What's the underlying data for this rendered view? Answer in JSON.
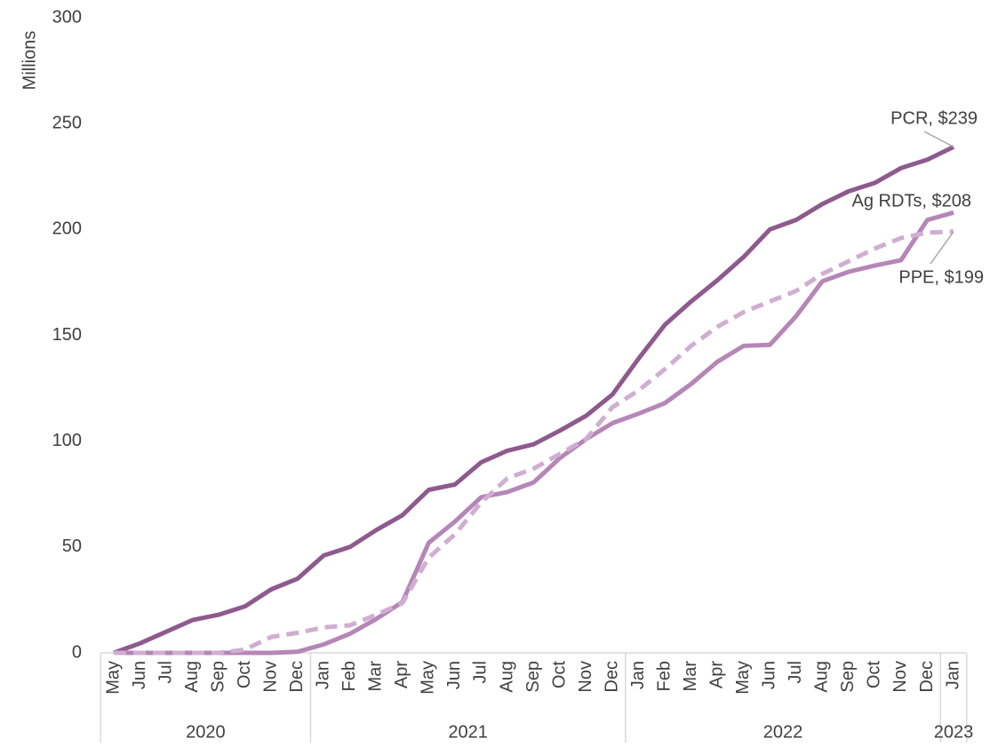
{
  "chart_data": {
    "type": "line",
    "y_label": "Millions",
    "categories": [
      "May",
      "Jun",
      "Jul",
      "Aug",
      "Sep",
      "Oct",
      "Nov",
      "Dec",
      "Jan",
      "Feb",
      "Mar",
      "Apr",
      "May",
      "Jun",
      "Jul",
      "Aug",
      "Sep",
      "Oct",
      "Nov",
      "Dec",
      "Jan",
      "Feb",
      "Mar",
      "Apr",
      "May",
      "Jun",
      "Jul",
      "Aug",
      "Sep",
      "Oct",
      "Nov",
      "Dec",
      "Jan"
    ],
    "category_groups": [
      {
        "label": "2020",
        "count": 8
      },
      {
        "label": "2021",
        "count": 12
      },
      {
        "label": "2022",
        "count": 12
      },
      {
        "label": "2023",
        "count": 1
      }
    ],
    "series": [
      {
        "name": "PCR",
        "color": "#8e5a8e",
        "dashed": false,
        "values": [
          0,
          4.5,
          10,
          15.5,
          18,
          22,
          30,
          35,
          46,
          50,
          58,
          65,
          77,
          79.5,
          90,
          95.5,
          98.5,
          105,
          112,
          122,
          139,
          155,
          166,
          176,
          187,
          200,
          204.5,
          212,
          218,
          222,
          229,
          233,
          239
        ],
        "value_labels": [
          null,
          null,
          null,
          null,
          null,
          null,
          null,
          null,
          null,
          null,
          null,
          null,
          null,
          null,
          null,
          null,
          null,
          null,
          null,
          null,
          null,
          null,
          null,
          null,
          null,
          null,
          null,
          null,
          null,
          null,
          null,
          null,
          "PCR,  $239"
        ]
      },
      {
        "name": "Ag RDTs",
        "color": "#b586b7",
        "dashed": false,
        "values": [
          0,
          0,
          0,
          0,
          0,
          0,
          0,
          0.5,
          4,
          9,
          16,
          24,
          52,
          62,
          73.5,
          76,
          80.5,
          92,
          101,
          108.5,
          113,
          118,
          127,
          137.5,
          145,
          145.5,
          159,
          175.5,
          180,
          183,
          185.5,
          204.5,
          208
        ],
        "value_labels": [
          null,
          null,
          null,
          null,
          null,
          null,
          null,
          null,
          null,
          null,
          null,
          null,
          null,
          null,
          null,
          null,
          null,
          null,
          null,
          null,
          null,
          null,
          null,
          null,
          null,
          null,
          null,
          null,
          null,
          null,
          null,
          null,
          "Ag RDTs,  $208"
        ]
      },
      {
        "name": "PPE",
        "color": "#d0aed1",
        "dashed": true,
        "values": [
          0,
          0,
          0,
          0,
          0,
          1.5,
          7.5,
          9.5,
          12,
          13,
          18,
          23.5,
          45,
          56,
          71,
          82.5,
          87,
          94,
          101,
          116,
          124,
          134,
          145,
          154,
          161,
          166,
          171,
          179,
          185,
          191,
          196,
          198.5,
          199
        ],
        "value_labels": [
          null,
          null,
          null,
          null,
          null,
          null,
          null,
          null,
          null,
          null,
          null,
          null,
          null,
          null,
          null,
          null,
          null,
          null,
          null,
          null,
          null,
          null,
          null,
          null,
          null,
          null,
          null,
          null,
          null,
          null,
          null,
          null,
          "PPE,  $199"
        ]
      }
    ],
    "ylim": [
      0,
      300
    ],
    "yticks": [
      0,
      50,
      100,
      150,
      200,
      250,
      300
    ],
    "grid": false
  }
}
